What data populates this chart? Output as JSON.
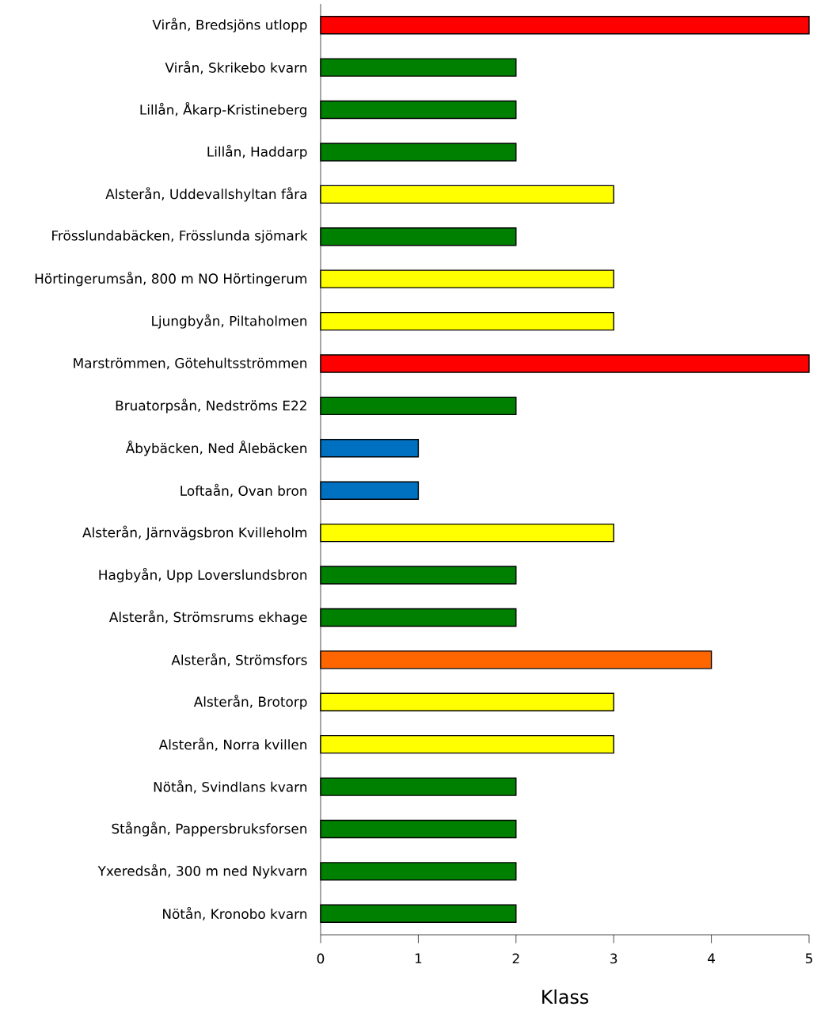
{
  "chart_data": {
    "type": "bar",
    "orientation": "horizontal",
    "xlabel": "Klass",
    "categories": [
      "Virån, Bredsjöns utlopp",
      "Virån, Skrikebo kvarn",
      "Lillån, Åkarp-Kristineberg",
      "Lillån, Haddarp",
      "Alsterån, Uddevallshyltan fåra",
      "Frösslundabäcken, Frösslunda sjömark",
      "Hörtingerumsån, 800 m NO Hörtingerum",
      "Ljungbyån, Piltaholmen",
      "Marströmmen, Götehultsströmmen",
      "Bruatorpsån, Nedströms E22",
      "Åbybäcken, Ned Ålebäcken",
      "Loftaån, Ovan bron",
      "Alsterån, Järnvägsbron Kvilleholm",
      "Hagbyån, Upp Loverslundsbron",
      "Alsterån, Strömsrums ekhage",
      "Alsterån, Strömsfors",
      "Alsterån, Brotorp",
      "Alsterån, Norra kvillen",
      "Nötån, Svindlans kvarn",
      "Stångån, Pappersbruksforsen",
      "Yxeredsån, 300 m ned Nykvarn",
      "Nötån, Kronobo kvarn"
    ],
    "values": [
      5,
      2,
      2,
      2,
      3,
      2,
      3,
      3,
      5,
      2,
      1,
      1,
      3,
      2,
      2,
      4,
      3,
      3,
      2,
      2,
      2,
      2
    ],
    "colors": [
      "#ff0000",
      "#008000",
      "#008000",
      "#008000",
      "#ffff00",
      "#008000",
      "#ffff00",
      "#ffff00",
      "#ff0000",
      "#008000",
      "#0070c0",
      "#0070c0",
      "#ffff00",
      "#008000",
      "#008000",
      "#ff6600",
      "#ffff00",
      "#ffff00",
      "#008000",
      "#008000",
      "#008000",
      "#008000"
    ],
    "xlim": [
      0,
      5
    ],
    "xticks": [
      0,
      1,
      2,
      3,
      4,
      5
    ]
  }
}
